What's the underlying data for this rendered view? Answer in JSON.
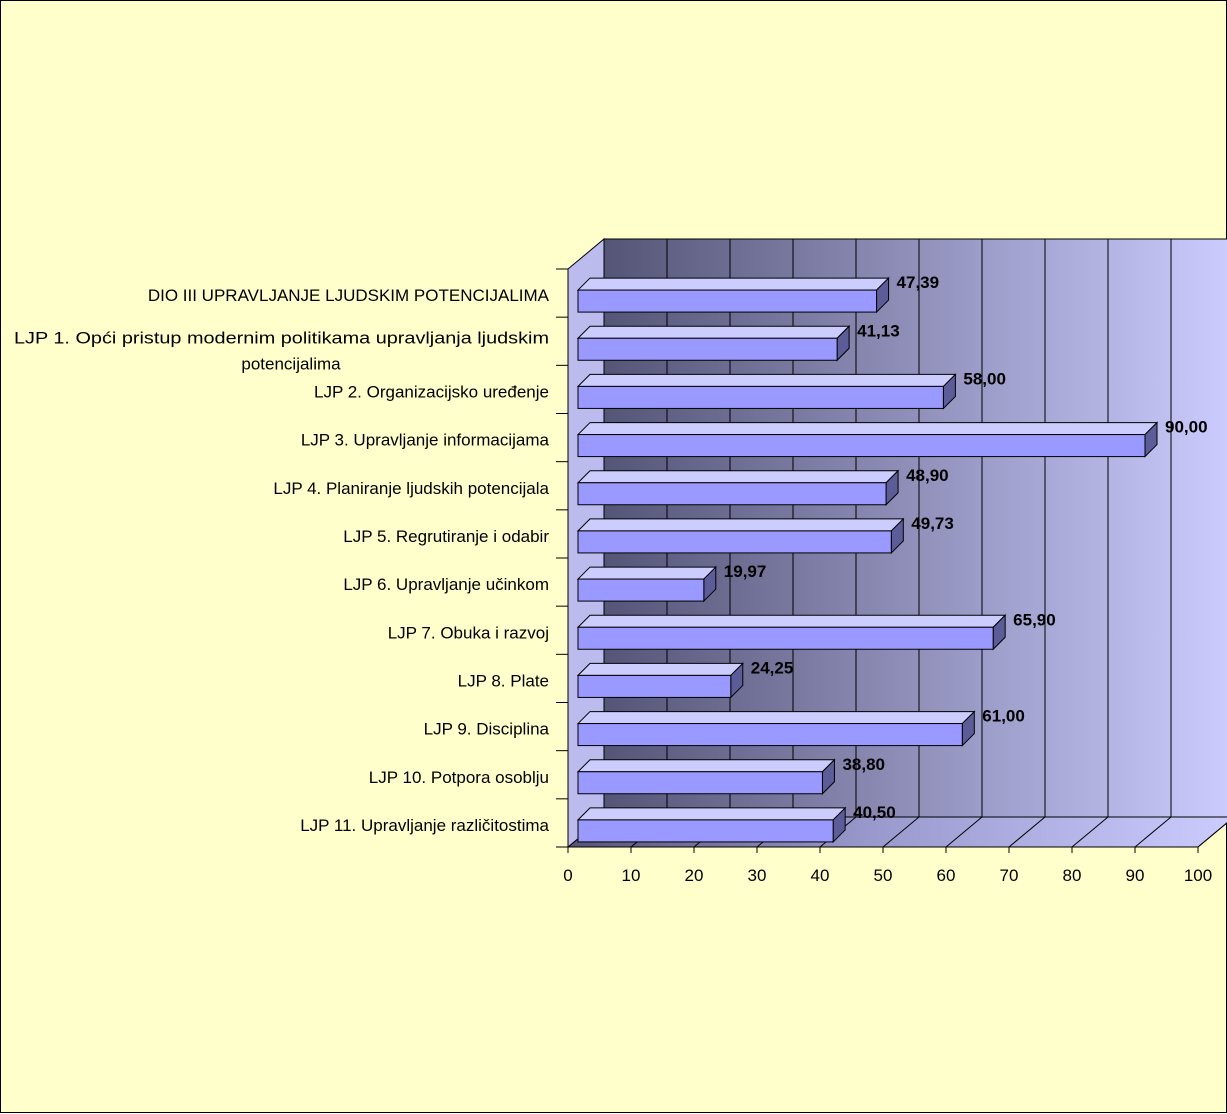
{
  "chart_data": {
    "type": "bar",
    "orientation": "horizontal",
    "style": "3d",
    "categories": [
      "DIO III UPRAVLJANJE LJUDSKIM POTENCIJALIMA",
      "LJP 1. Opći pristup modernim politikama upravljanja ljudskim potencijalima",
      "LJP 2. Organizacijsko uređenje",
      "LJP 3. Upravljanje informacijama",
      "LJP 4. Planiranje ljudskih potencijala",
      "LJP 5. Regrutiranje i odabir",
      "LJP 6. Upravljanje učinkom",
      "LJP 7. Obuka i razvoj",
      "LJP 8. Plate",
      "LJP 9. Disciplina",
      "LJP 10. Potpora osoblju",
      "LJP 11. Upravljanje različitostima"
    ],
    "values": [
      47.39,
      41.13,
      58.0,
      90.0,
      48.9,
      49.73,
      19.97,
      65.9,
      24.25,
      61.0,
      38.8,
      40.5
    ],
    "value_labels": [
      "47,39",
      "41,13",
      "58,00",
      "90,00",
      "48,90",
      "49,73",
      "19,97",
      "65,90",
      "24,25",
      "61,00",
      "38,80",
      "40,50"
    ],
    "x_ticks": [
      "0",
      "10",
      "20",
      "30",
      "40",
      "50",
      "60",
      "70",
      "80",
      "90",
      "100"
    ],
    "xlim": [
      0,
      100
    ],
    "title": "",
    "xlabel": "",
    "ylabel": "",
    "grid": true,
    "legend": "none",
    "colors": {
      "background": "#ffffcc",
      "bar_front": "#9999ff",
      "bar_top": "#ccccff",
      "bar_side": "#5c5c99",
      "wall_dark": "#555577",
      "wall_light": "#ccccff",
      "floor": "#bbbbee",
      "floor_dark": "#555577"
    }
  }
}
